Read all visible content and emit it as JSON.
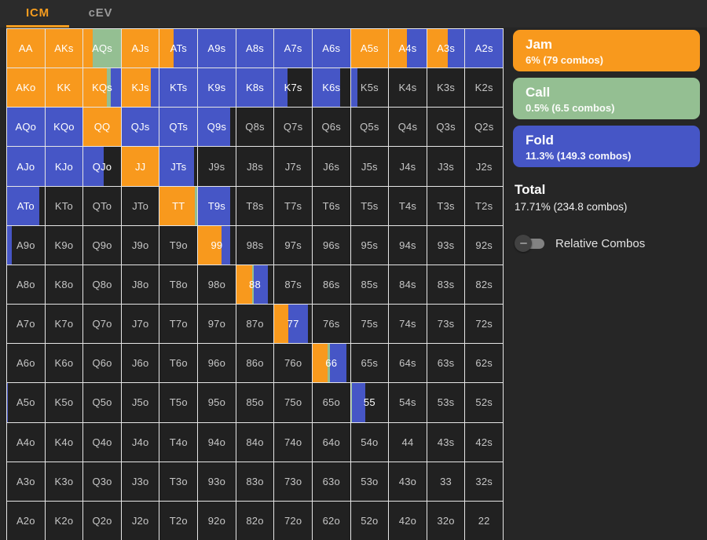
{
  "tabs": {
    "icm": "ICM",
    "cev": "cEV"
  },
  "colors": {
    "jam": "#f8991d",
    "call": "#94bf92",
    "fold": "#4656c6",
    "none": "#212121",
    "accent_tab": "#f59c1f",
    "grid_line": "#e6e6e6"
  },
  "legend": [
    {
      "id": "jam",
      "label": "Jam",
      "detail": "6% (79 combos)"
    },
    {
      "id": "call",
      "label": "Call",
      "detail": "0.5% (6.5 combos)"
    },
    {
      "id": "fold",
      "label": "Fold",
      "detail": "11.3% (149.3 combos)"
    }
  ],
  "total": {
    "label": "Total",
    "detail": "17.71% (234.8 combos)"
  },
  "toggle": {
    "label": "Relative Combos",
    "state": "off"
  },
  "grid": {
    "rows": [
      [
        {
          "h": "AA",
          "a": [
            [
              "jam",
              100
            ]
          ]
        },
        {
          "h": "AKs",
          "a": [
            [
              "jam",
              100
            ]
          ]
        },
        {
          "h": "AQs",
          "a": [
            [
              "jam",
              25
            ],
            [
              "call",
              75
            ]
          ]
        },
        {
          "h": "AJs",
          "a": [
            [
              "jam",
              100
            ]
          ]
        },
        {
          "h": "ATs",
          "a": [
            [
              "jam",
              36
            ],
            [
              "fold",
              64
            ]
          ]
        },
        {
          "h": "A9s",
          "a": [
            [
              "fold",
              100
            ]
          ]
        },
        {
          "h": "A8s",
          "a": [
            [
              "fold",
              100
            ]
          ]
        },
        {
          "h": "A7s",
          "a": [
            [
              "fold",
              100
            ]
          ]
        },
        {
          "h": "A6s",
          "a": [
            [
              "fold",
              100
            ]
          ]
        },
        {
          "h": "A5s",
          "a": [
            [
              "jam",
              100
            ]
          ]
        },
        {
          "h": "A4s",
          "a": [
            [
              "jam",
              49
            ],
            [
              "fold",
              51
            ]
          ]
        },
        {
          "h": "A3s",
          "a": [
            [
              "jam",
              55
            ],
            [
              "fold",
              45
            ]
          ]
        },
        {
          "h": "A2s",
          "a": [
            [
              "fold",
              100
            ]
          ]
        }
      ],
      [
        {
          "h": "AKo",
          "a": [
            [
              "jam",
              100
            ]
          ]
        },
        {
          "h": "KK",
          "a": [
            [
              "jam",
              100
            ]
          ]
        },
        {
          "h": "KQs",
          "a": [
            [
              "jam",
              62
            ],
            [
              "call",
              12
            ],
            [
              "fold",
              26
            ]
          ]
        },
        {
          "h": "KJs",
          "a": [
            [
              "jam",
              78
            ],
            [
              "fold",
              22
            ]
          ]
        },
        {
          "h": "KTs",
          "a": [
            [
              "fold",
              100
            ]
          ]
        },
        {
          "h": "K9s",
          "a": [
            [
              "fold",
              100
            ]
          ]
        },
        {
          "h": "K8s",
          "a": [
            [
              "fold",
              100
            ]
          ]
        },
        {
          "h": "K7s",
          "a": [
            [
              "fold",
              35
            ]
          ]
        },
        {
          "h": "K6s",
          "a": [
            [
              "fold",
              73
            ]
          ]
        },
        {
          "h": "K5s",
          "a": [
            [
              "fold",
              18
            ]
          ]
        },
        {
          "h": "K4s",
          "a": []
        },
        {
          "h": "K3s",
          "a": []
        },
        {
          "h": "K2s",
          "a": []
        }
      ],
      [
        {
          "h": "AQo",
          "a": [
            [
              "fold",
              100
            ]
          ]
        },
        {
          "h": "KQo",
          "a": [
            [
              "fold",
              100
            ]
          ]
        },
        {
          "h": "QQ",
          "a": [
            [
              "jam",
              100
            ]
          ]
        },
        {
          "h": "QJs",
          "a": [
            [
              "fold",
              100
            ]
          ]
        },
        {
          "h": "QTs",
          "a": [
            [
              "fold",
              100
            ]
          ]
        },
        {
          "h": "Q9s",
          "a": [
            [
              "fold",
              85
            ]
          ]
        },
        {
          "h": "Q8s",
          "a": []
        },
        {
          "h": "Q7s",
          "a": []
        },
        {
          "h": "Q6s",
          "a": []
        },
        {
          "h": "Q5s",
          "a": []
        },
        {
          "h": "Q4s",
          "a": []
        },
        {
          "h": "Q3s",
          "a": []
        },
        {
          "h": "Q2s",
          "a": []
        }
      ],
      [
        {
          "h": "AJo",
          "a": [
            [
              "fold",
              100
            ]
          ]
        },
        {
          "h": "KJo",
          "a": [
            [
              "fold",
              100
            ]
          ]
        },
        {
          "h": "QJo",
          "a": [
            [
              "fold",
              55
            ]
          ]
        },
        {
          "h": "JJ",
          "a": [
            [
              "jam",
              100
            ]
          ]
        },
        {
          "h": "JTs",
          "a": [
            [
              "fold",
              92
            ]
          ]
        },
        {
          "h": "J9s",
          "a": []
        },
        {
          "h": "J8s",
          "a": []
        },
        {
          "h": "J7s",
          "a": []
        },
        {
          "h": "J6s",
          "a": []
        },
        {
          "h": "J5s",
          "a": []
        },
        {
          "h": "J4s",
          "a": []
        },
        {
          "h": "J3s",
          "a": []
        },
        {
          "h": "J2s",
          "a": []
        }
      ],
      [
        {
          "h": "ATo",
          "a": [
            [
              "fold",
              86
            ]
          ]
        },
        {
          "h": "KTo",
          "a": []
        },
        {
          "h": "QTo",
          "a": []
        },
        {
          "h": "JTo",
          "a": []
        },
        {
          "h": "TT",
          "a": [
            [
              "jam",
              94
            ],
            [
              "call",
              6
            ]
          ]
        },
        {
          "h": "T9s",
          "a": [
            [
              "fold",
              85
            ]
          ]
        },
        {
          "h": "T8s",
          "a": []
        },
        {
          "h": "T7s",
          "a": []
        },
        {
          "h": "T6s",
          "a": []
        },
        {
          "h": "T5s",
          "a": []
        },
        {
          "h": "T4s",
          "a": []
        },
        {
          "h": "T3s",
          "a": []
        },
        {
          "h": "T2s",
          "a": []
        }
      ],
      [
        {
          "h": "A9o",
          "a": [
            [
              "fold",
              13
            ]
          ]
        },
        {
          "h": "K9o",
          "a": []
        },
        {
          "h": "Q9o",
          "a": []
        },
        {
          "h": "J9o",
          "a": []
        },
        {
          "h": "T9o",
          "a": []
        },
        {
          "h": "99",
          "a": [
            [
              "jam",
              62
            ],
            [
              "fold",
              23
            ]
          ]
        },
        {
          "h": "98s",
          "a": []
        },
        {
          "h": "97s",
          "a": []
        },
        {
          "h": "96s",
          "a": []
        },
        {
          "h": "95s",
          "a": []
        },
        {
          "h": "94s",
          "a": []
        },
        {
          "h": "93s",
          "a": []
        },
        {
          "h": "92s",
          "a": []
        }
      ],
      [
        {
          "h": "A8o",
          "a": []
        },
        {
          "h": "K8o",
          "a": []
        },
        {
          "h": "Q8o",
          "a": []
        },
        {
          "h": "J8o",
          "a": []
        },
        {
          "h": "T8o",
          "a": []
        },
        {
          "h": "98o",
          "a": []
        },
        {
          "h": "88",
          "a": [
            [
              "jam",
              42
            ],
            [
              "call",
              4
            ],
            [
              "fold",
              39
            ]
          ]
        },
        {
          "h": "87s",
          "a": []
        },
        {
          "h": "86s",
          "a": []
        },
        {
          "h": "85s",
          "a": []
        },
        {
          "h": "84s",
          "a": []
        },
        {
          "h": "83s",
          "a": []
        },
        {
          "h": "82s",
          "a": []
        }
      ],
      [
        {
          "h": "A7o",
          "a": []
        },
        {
          "h": "K7o",
          "a": []
        },
        {
          "h": "Q7o",
          "a": []
        },
        {
          "h": "J7o",
          "a": []
        },
        {
          "h": "T7o",
          "a": []
        },
        {
          "h": "97o",
          "a": []
        },
        {
          "h": "87o",
          "a": []
        },
        {
          "h": "77",
          "a": [
            [
              "jam",
              38
            ],
            [
              "fold",
              52
            ]
          ]
        },
        {
          "h": "76s",
          "a": []
        },
        {
          "h": "75s",
          "a": []
        },
        {
          "h": "74s",
          "a": []
        },
        {
          "h": "73s",
          "a": []
        },
        {
          "h": "72s",
          "a": []
        }
      ],
      [
        {
          "h": "A6o",
          "a": []
        },
        {
          "h": "K6o",
          "a": []
        },
        {
          "h": "Q6o",
          "a": []
        },
        {
          "h": "J6o",
          "a": []
        },
        {
          "h": "T6o",
          "a": []
        },
        {
          "h": "96o",
          "a": []
        },
        {
          "h": "86o",
          "a": []
        },
        {
          "h": "76o",
          "a": []
        },
        {
          "h": "66",
          "a": [
            [
              "jam",
              40
            ],
            [
              "call",
              6
            ],
            [
              "fold",
              45
            ]
          ]
        },
        {
          "h": "65s",
          "a": []
        },
        {
          "h": "64s",
          "a": []
        },
        {
          "h": "63s",
          "a": []
        },
        {
          "h": "62s",
          "a": []
        }
      ],
      [
        {
          "h": "A5o",
          "a": [
            [
              "fold",
              3
            ]
          ]
        },
        {
          "h": "K5o",
          "a": []
        },
        {
          "h": "Q5o",
          "a": []
        },
        {
          "h": "J5o",
          "a": []
        },
        {
          "h": "T5o",
          "a": []
        },
        {
          "h": "95o",
          "a": []
        },
        {
          "h": "85o",
          "a": []
        },
        {
          "h": "75o",
          "a": []
        },
        {
          "h": "65o",
          "a": []
        },
        {
          "h": "55",
          "a": [
            [
              "call",
              3
            ],
            [
              "fold",
              36
            ]
          ]
        },
        {
          "h": "54s",
          "a": []
        },
        {
          "h": "53s",
          "a": []
        },
        {
          "h": "52s",
          "a": []
        }
      ],
      [
        {
          "h": "A4o",
          "a": []
        },
        {
          "h": "K4o",
          "a": []
        },
        {
          "h": "Q4o",
          "a": []
        },
        {
          "h": "J4o",
          "a": []
        },
        {
          "h": "T4o",
          "a": []
        },
        {
          "h": "94o",
          "a": []
        },
        {
          "h": "84o",
          "a": []
        },
        {
          "h": "74o",
          "a": []
        },
        {
          "h": "64o",
          "a": []
        },
        {
          "h": "54o",
          "a": []
        },
        {
          "h": "44",
          "a": []
        },
        {
          "h": "43s",
          "a": []
        },
        {
          "h": "42s",
          "a": []
        }
      ],
      [
        {
          "h": "A3o",
          "a": []
        },
        {
          "h": "K3o",
          "a": []
        },
        {
          "h": "Q3o",
          "a": []
        },
        {
          "h": "J3o",
          "a": []
        },
        {
          "h": "T3o",
          "a": []
        },
        {
          "h": "93o",
          "a": []
        },
        {
          "h": "83o",
          "a": []
        },
        {
          "h": "73o",
          "a": []
        },
        {
          "h": "63o",
          "a": []
        },
        {
          "h": "53o",
          "a": []
        },
        {
          "h": "43o",
          "a": []
        },
        {
          "h": "33",
          "a": []
        },
        {
          "h": "32s",
          "a": []
        }
      ],
      [
        {
          "h": "A2o",
          "a": []
        },
        {
          "h": "K2o",
          "a": []
        },
        {
          "h": "Q2o",
          "a": []
        },
        {
          "h": "J2o",
          "a": []
        },
        {
          "h": "T2o",
          "a": []
        },
        {
          "h": "92o",
          "a": []
        },
        {
          "h": "82o",
          "a": []
        },
        {
          "h": "72o",
          "a": []
        },
        {
          "h": "62o",
          "a": []
        },
        {
          "h": "52o",
          "a": []
        },
        {
          "h": "42o",
          "a": []
        },
        {
          "h": "32o",
          "a": []
        },
        {
          "h": "22",
          "a": []
        }
      ]
    ]
  }
}
